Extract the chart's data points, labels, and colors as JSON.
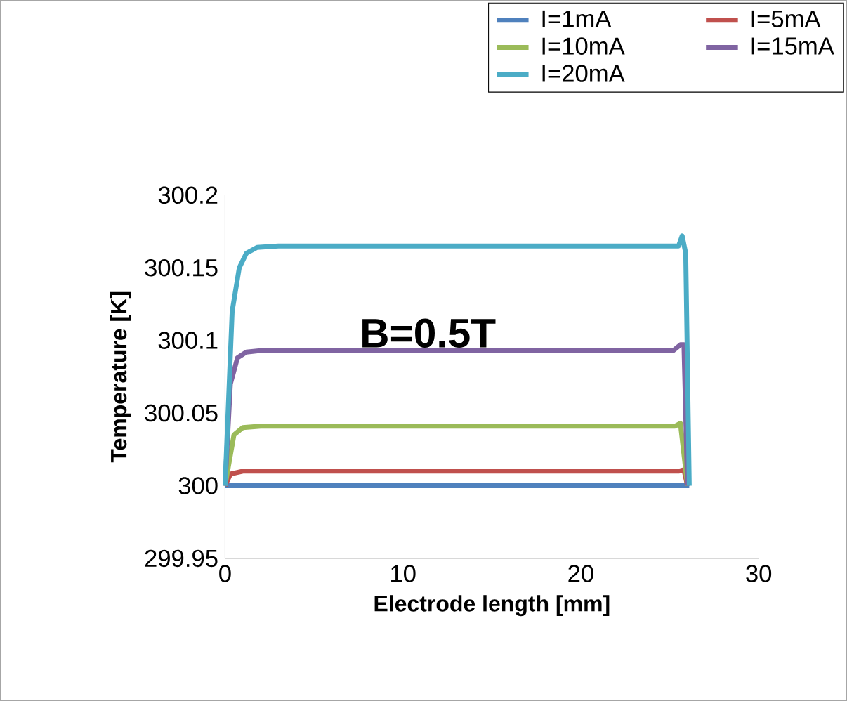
{
  "chart_data": {
    "type": "line",
    "xlabel": "Electrode length [mm]",
    "ylabel": "Temperature [K]",
    "xlim": [
      0,
      30
    ],
    "ylim": [
      299.95,
      300.2
    ],
    "xticks": [
      0,
      10,
      20,
      30
    ],
    "yticks": [
      299.95,
      300,
      300.05,
      300.1,
      300.15,
      300.2
    ],
    "legend": "top",
    "annotations": [
      "B=0.5T"
    ],
    "series": [
      {
        "name": "I=1mA",
        "color": "#4f81bd",
        "x": [
          0,
          0.3,
          25.9,
          26.1
        ],
        "values": [
          300,
          300,
          300,
          300
        ]
      },
      {
        "name": "I=5mA",
        "color": "#c0504d",
        "x": [
          0,
          0.3,
          1,
          25.5,
          25.8,
          26.0
        ],
        "values": [
          300,
          300.008,
          300.01,
          300.01,
          300.011,
          300
        ]
      },
      {
        "name": "I=10mA",
        "color": "#9bbb59",
        "x": [
          0,
          0.5,
          1,
          2,
          25.3,
          25.6,
          26.0
        ],
        "values": [
          300,
          300.035,
          300.04,
          300.041,
          300.041,
          300.043,
          300
        ]
      },
      {
        "name": "I=15mA",
        "color": "#8064a2",
        "x": [
          0,
          0.3,
          0.7,
          1.2,
          2,
          25.2,
          25.6,
          25.8,
          26.0
        ],
        "values": [
          300,
          300.07,
          300.088,
          300.092,
          300.093,
          300.093,
          300.097,
          300.097,
          300
        ]
      },
      {
        "name": "I=20mA",
        "color": "#4bacc6",
        "x": [
          0,
          0.4,
          0.8,
          1.2,
          1.8,
          3,
          25,
          25.5,
          25.7,
          25.9,
          26.1
        ],
        "values": [
          300,
          300.12,
          300.15,
          300.16,
          300.164,
          300.165,
          300.165,
          300.165,
          300.172,
          300.16,
          300
        ]
      }
    ]
  }
}
